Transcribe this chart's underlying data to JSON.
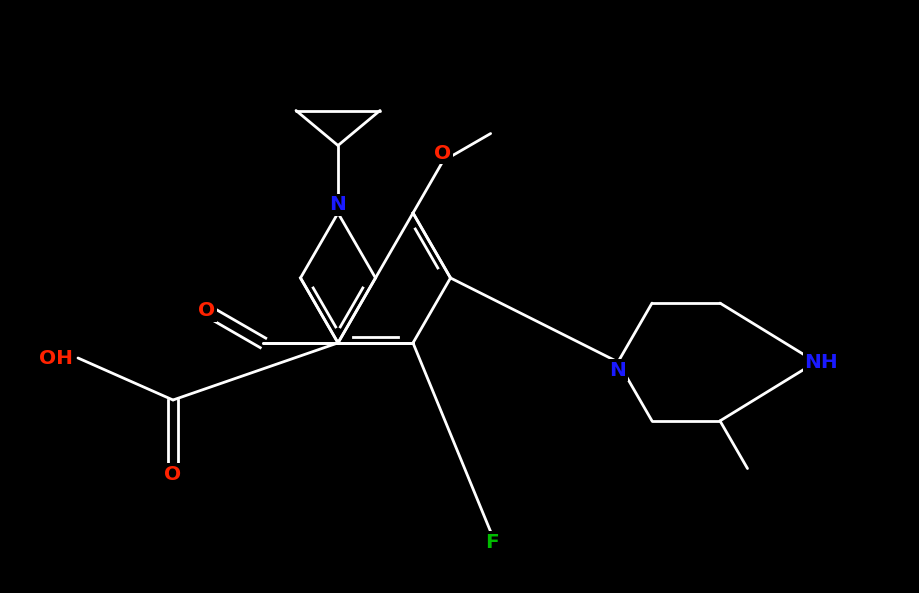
{
  "background_color": "#000000",
  "bond_color": "#ffffff",
  "colors": {
    "O": "#ff2200",
    "N": "#1a1aff",
    "F": "#00bb00",
    "C": "#ffffff"
  },
  "figsize": [
    9.19,
    5.93
  ],
  "dpi": 100,
  "bond_lw": 2.0,
  "font_size": 14.5
}
